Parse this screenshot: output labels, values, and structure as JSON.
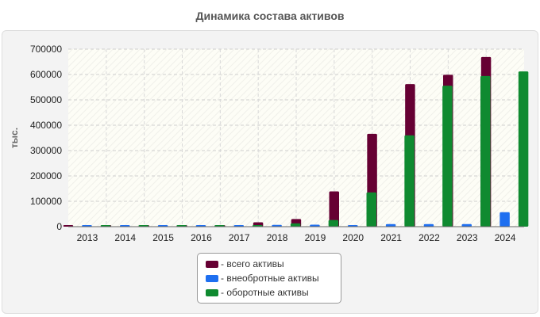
{
  "chart_data": {
    "type": "bar",
    "title": "Динамика состава активов",
    "ylabel": "тыс.",
    "xlabel": "",
    "ylim": [
      0,
      700000
    ],
    "yticks": [
      0,
      100000,
      200000,
      300000,
      400000,
      500000,
      600000,
      700000
    ],
    "grid": true,
    "legend_position": "bottom-center",
    "categories": [
      "2013",
      "2014",
      "2015",
      "2016",
      "2017",
      "2018",
      "2019",
      "2020",
      "2021",
      "2022",
      "2023",
      "2024"
    ],
    "series": [
      {
        "name": "- всего активы",
        "color": "#660033",
        "values": [
          3000,
          3000,
          3000,
          3000,
          4000,
          17000,
          30000,
          139000,
          366000,
          562000,
          599000,
          669000
        ]
      },
      {
        "name": "- внеобротные активы",
        "color": "#1e6ff0",
        "values": [
          500,
          500,
          500,
          500,
          500,
          7000,
          8000,
          4000,
          10000,
          10000,
          10000,
          57000
        ]
      },
      {
        "name": "- оборотные активы",
        "color": "#0f8a30",
        "values": [
          2500,
          2500,
          2500,
          2500,
          3500,
          13000,
          26000,
          135000,
          360000,
          556000,
          594000,
          612000
        ]
      }
    ]
  }
}
